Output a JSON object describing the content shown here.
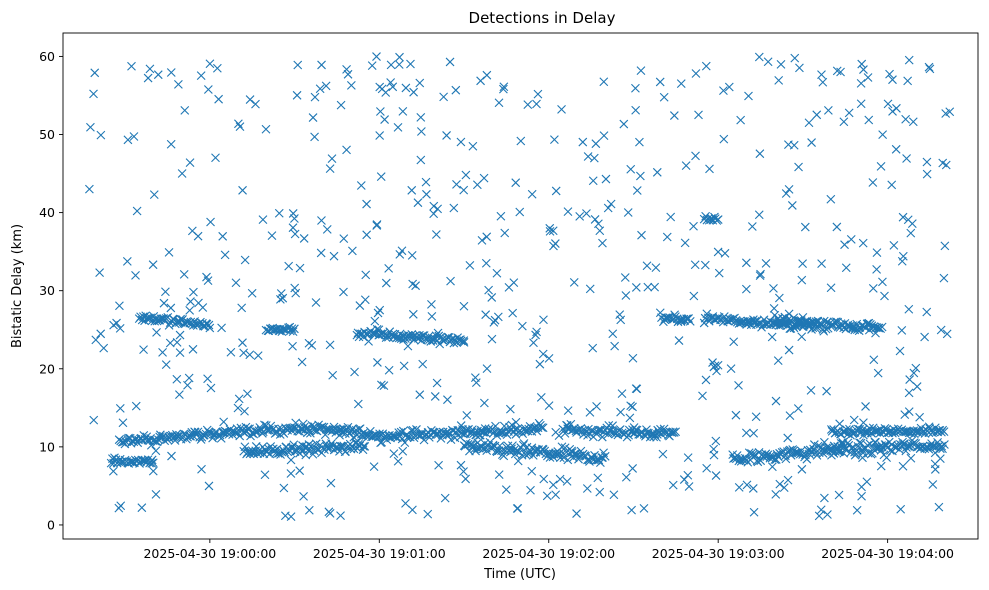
{
  "chart_data": {
    "type": "scatter",
    "title": "Detections in Delay",
    "xlabel": "Time (UTC)",
    "ylabel": "Bistatic Delay (km)",
    "x_start": "2025-04-30 18:59:17",
    "x_end": "2025-04-30 19:04:22",
    "xlim": [
      "2025-04-30 18:59:08",
      "2025-04-30 19:04:32"
    ],
    "ylim": [
      -1.8,
      63
    ],
    "x_tick_labels": [
      "2025-04-30 19:00:00",
      "2025-04-30 19:01:00",
      "2025-04-30 19:02:00",
      "2025-04-30 19:03:00",
      "2025-04-30 19:04:00"
    ],
    "y_ticks": [
      0,
      10,
      20,
      30,
      40,
      50,
      60
    ],
    "marker": "x",
    "marker_color": "#1f77b4",
    "grid": false,
    "legend": "none",
    "series": [
      {
        "points_sampled": true,
        "tracks": [
          {
            "from": [
              "2025-04-30 18:59:28",
              10.6
            ],
            "to": [
              "2025-04-30 19:00:05",
              11.8
            ],
            "spread": 0.3
          },
          {
            "from": [
              "2025-04-30 19:00:05",
              11.8
            ],
            "to": [
              "2025-04-30 19:00:33",
              12.4
            ],
            "spread": 0.3
          },
          {
            "from": [
              "2025-04-30 19:00:33",
              12.4
            ],
            "to": [
              "2025-04-30 19:01:00",
              11.6
            ],
            "spread": 0.3
          },
          {
            "from": [
              "2025-04-30 19:01:00",
              11.3
            ],
            "to": [
              "2025-04-30 19:01:58",
              12.3
            ],
            "spread": 0.35
          },
          {
            "from": [
              "2025-04-30 19:02:05",
              12.2
            ],
            "to": [
              "2025-04-30 19:02:45",
              11.6
            ],
            "spread": 0.3
          },
          {
            "from": [
              "2025-04-30 19:00:12",
              9.4
            ],
            "to": [
              "2025-04-30 19:00:55",
              10.0
            ],
            "spread": 0.35
          },
          {
            "from": [
              "2025-04-30 19:01:30",
              10.0
            ],
            "to": [
              "2025-04-30 19:02:20",
              8.6
            ],
            "spread": 0.4
          },
          {
            "from": [
              "2025-04-30 19:03:05",
              8.4
            ],
            "to": [
              "2025-04-30 19:03:45",
              9.8
            ],
            "spread": 0.4
          },
          {
            "from": [
              "2025-04-30 19:03:40",
              9.6
            ],
            "to": [
              "2025-04-30 19:04:20",
              10.2
            ],
            "spread": 0.4
          },
          {
            "from": [
              "2025-04-30 19:03:40",
              12.0
            ],
            "to": [
              "2025-04-30 19:04:20",
              12.0
            ],
            "spread": 0.2
          },
          {
            "from": [
              "2025-04-30 18:59:25",
              8.2
            ],
            "to": [
              "2025-04-30 18:59:40",
              8.2
            ],
            "spread": 0.2
          },
          {
            "from": [
              "2025-04-30 18:59:35",
              26.6
            ],
            "to": [
              "2025-04-30 19:00:00",
              25.6
            ],
            "spread": 0.25
          },
          {
            "from": [
              "2025-04-30 19:00:20",
              25.0
            ],
            "to": [
              "2025-04-30 19:00:30",
              25.0
            ],
            "spread": 0.2
          },
          {
            "from": [
              "2025-04-30 19:00:52",
              24.6
            ],
            "to": [
              "2025-04-30 19:01:30",
              23.6
            ],
            "spread": 0.25
          },
          {
            "from": [
              "2025-04-30 19:02:40",
              26.4
            ],
            "to": [
              "2025-04-30 19:02:50",
              26.4
            ],
            "spread": 0.2
          },
          {
            "from": [
              "2025-04-30 19:02:55",
              26.5
            ],
            "to": [
              "2025-04-30 19:03:35",
              25.4
            ],
            "spread": 0.3
          },
          {
            "from": [
              "2025-04-30 19:03:20",
              26.3
            ],
            "to": [
              "2025-04-30 19:03:58",
              25.2
            ],
            "spread": 0.3
          },
          {
            "from": [
              "2025-04-30 19:02:55",
              39.2
            ],
            "to": [
              "2025-04-30 19:03:00",
              39.2
            ],
            "spread": 0.2
          },
          {
            "from": [
              "2025-04-30 19:02:58",
              20.4
            ],
            "to": [
              "2025-04-30 19:03:00",
              20.4
            ],
            "spread": 0.3
          }
        ],
        "scattered_points": {
          "count": 620,
          "y_range": [
            1,
            60
          ]
        }
      }
    ]
  }
}
